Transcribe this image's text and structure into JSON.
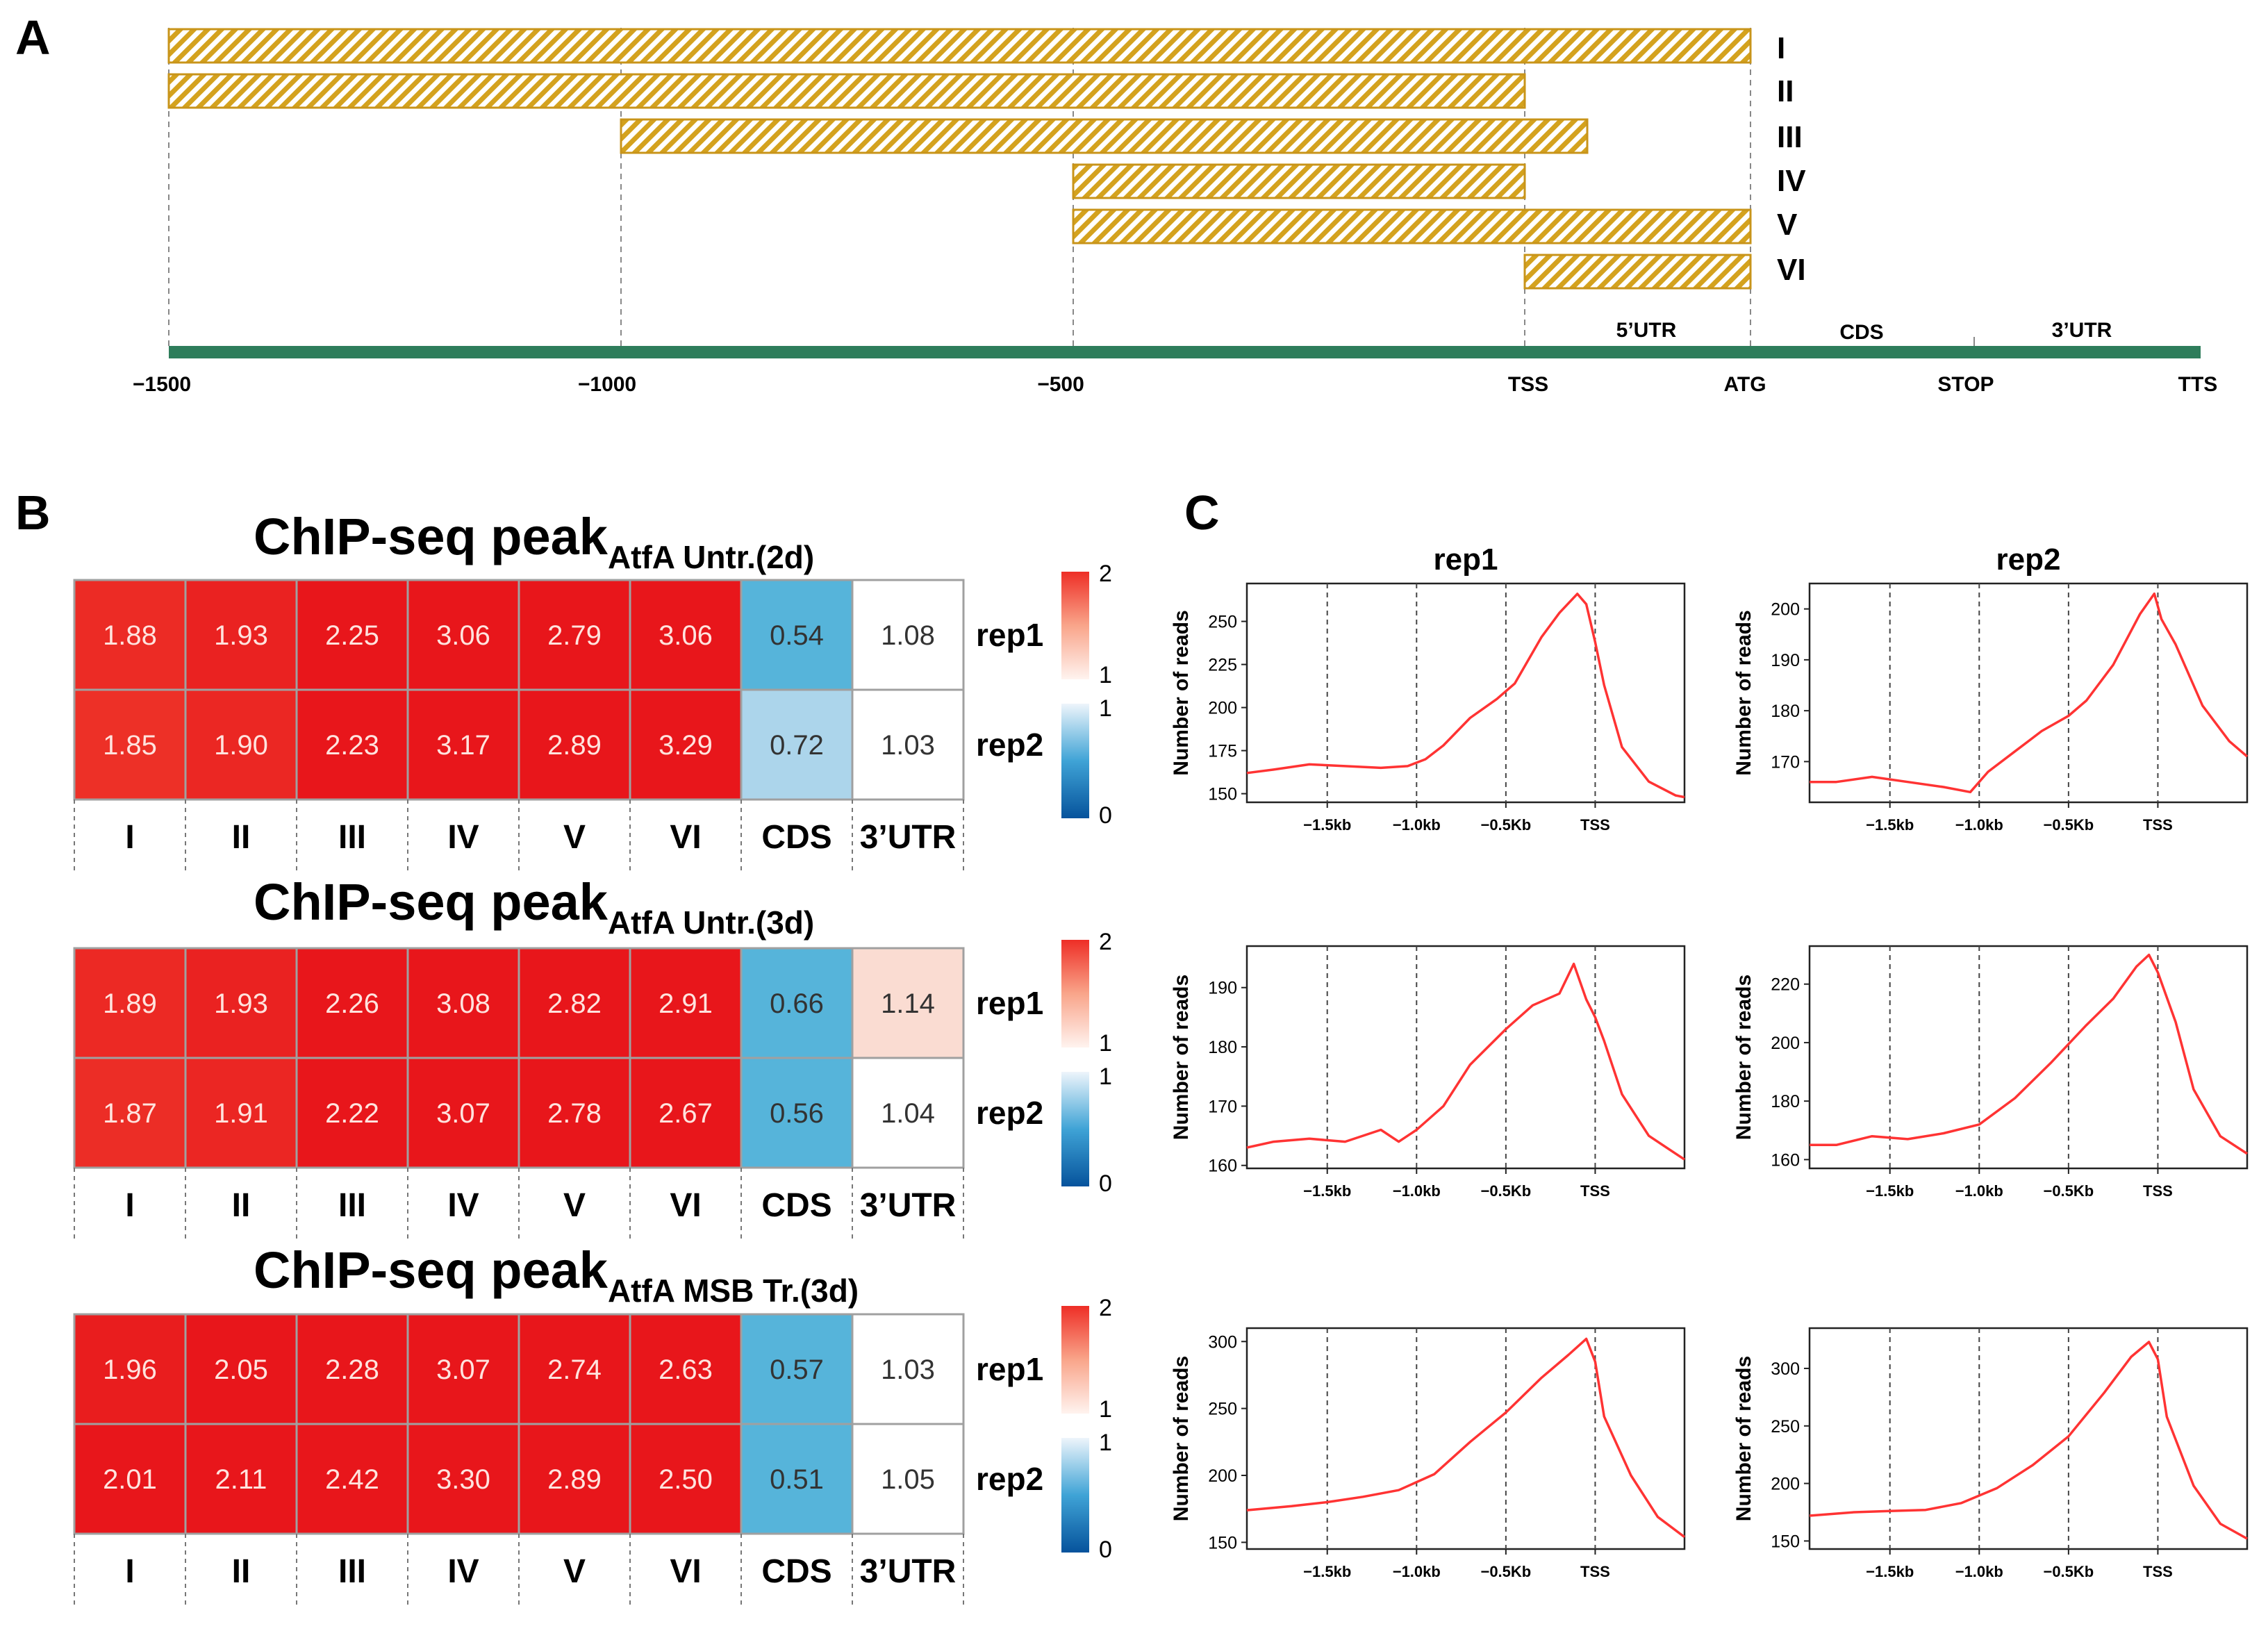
{
  "panel_labels": {
    "a": "A",
    "b": "B",
    "c": "C"
  },
  "colors": {
    "bar_stripe": "#D4A21E",
    "bar_border": "#C8941A",
    "axis_line": "#2E7D5B",
    "curve": "#FF3333",
    "cell_border": "#A0A0A0",
    "heat_high": "#E8161B",
    "heat_low_cds": "#56B4DA"
  },
  "panel_a": {
    "regions": [
      {
        "label": "I",
        "start": -1500,
        "end": "ATG"
      },
      {
        "label": "II",
        "start": -1500,
        "end": "TSS"
      },
      {
        "label": "III",
        "start": -1000,
        "end": "5'UTR mid"
      },
      {
        "label": "IV",
        "start": -500,
        "end": "TSS"
      },
      {
        "label": "V",
        "start": -500,
        "end": "ATG"
      },
      {
        "label": "VI",
        "start": "TSS",
        "end": "ATG"
      }
    ],
    "axis_ticks": [
      "−1500",
      "−1000",
      "−500",
      "TSS",
      "ATG",
      "STOP",
      "TTS"
    ],
    "segment_labels": [
      "5’UTR",
      "CDS",
      "3’UTR"
    ]
  },
  "chart_data": [
    {
      "type": "heatmap",
      "title_main": "ChIP-seq peak",
      "title_sub": "AtfA Untr.(2d)",
      "columns": [
        "I",
        "II",
        "III",
        "IV",
        "V",
        "VI",
        "CDS",
        "3’UTR"
      ],
      "rows": [
        "rep1",
        "rep2"
      ],
      "values": [
        [
          "1.88",
          "1.93",
          "2.25",
          "3.06",
          "2.79",
          "3.06",
          "0.54",
          "1.08"
        ],
        [
          "1.85",
          "1.90",
          "2.23",
          "3.17",
          "2.89",
          "3.29",
          "0.72",
          "1.03"
        ]
      ],
      "colorbar_ticks": [
        "2",
        "1",
        "1",
        "0"
      ]
    },
    {
      "type": "heatmap",
      "title_main": "ChIP-seq peak",
      "title_sub": "AtfA Untr.(3d)",
      "columns": [
        "I",
        "II",
        "III",
        "IV",
        "V",
        "VI",
        "CDS",
        "3’UTR"
      ],
      "rows": [
        "rep1",
        "rep2"
      ],
      "values": [
        [
          "1.89",
          "1.93",
          "2.26",
          "3.08",
          "2.82",
          "2.91",
          "0.66",
          "1.14"
        ],
        [
          "1.87",
          "1.91",
          "2.22",
          "3.07",
          "2.78",
          "2.67",
          "0.56",
          "1.04"
        ]
      ],
      "colorbar_ticks": [
        "2",
        "1",
        "1",
        "0"
      ]
    },
    {
      "type": "heatmap",
      "title_main": "ChIP-seq peak",
      "title_sub": "AtfA MSB Tr.(3d)",
      "columns": [
        "I",
        "II",
        "III",
        "IV",
        "V",
        "VI",
        "CDS",
        "3’UTR"
      ],
      "rows": [
        "rep1",
        "rep2"
      ],
      "values": [
        [
          "1.96",
          "2.05",
          "2.28",
          "3.07",
          "2.74",
          "2.63",
          "0.57",
          "1.03"
        ],
        [
          "2.01",
          "2.11",
          "2.42",
          "3.30",
          "2.89",
          "2.50",
          "0.51",
          "1.05"
        ]
      ],
      "colorbar_ticks": [
        "2",
        "1",
        "1",
        "0"
      ]
    },
    {
      "type": "line",
      "title": "rep1",
      "ylabel": "Number of reads",
      "xticks": [
        "−1.5kb",
        "−1.0kb",
        "−0.5Kb",
        "TSS"
      ],
      "xlim": [
        -1.95,
        0.5
      ],
      "xtick_values": [
        -1.5,
        -1.0,
        -0.5,
        0
      ],
      "ylim": [
        145,
        272
      ],
      "yticks": [
        150,
        175,
        200,
        225,
        250
      ],
      "x": [
        -1.95,
        -1.8,
        -1.6,
        -1.4,
        -1.2,
        -1.05,
        -0.95,
        -0.85,
        -0.7,
        -0.55,
        -0.45,
        -0.3,
        -0.2,
        -0.1,
        -0.05,
        0.0,
        0.05,
        0.15,
        0.3,
        0.45,
        0.5
      ],
      "y": [
        162,
        164,
        167,
        166,
        165,
        166,
        170,
        178,
        194,
        205,
        214,
        241,
        255,
        266,
        260,
        238,
        213,
        177,
        157,
        149,
        148
      ]
    },
    {
      "type": "line",
      "title": "rep2",
      "ylabel": "Number of reads",
      "xticks": [
        "−1.5kb",
        "−1.0kb",
        "−0.5Kb",
        "TSS"
      ],
      "xlim": [
        -1.95,
        0.5
      ],
      "xtick_values": [
        -1.5,
        -1.0,
        -0.5,
        0
      ],
      "ylim": [
        162,
        205
      ],
      "yticks": [
        170,
        180,
        190,
        200
      ],
      "x": [
        -1.95,
        -1.8,
        -1.6,
        -1.4,
        -1.2,
        -1.05,
        -0.95,
        -0.8,
        -0.65,
        -0.5,
        -0.4,
        -0.25,
        -0.1,
        -0.02,
        0.02,
        0.1,
        0.25,
        0.4,
        0.5
      ],
      "y": [
        166,
        166,
        167,
        166,
        165,
        164,
        168,
        172,
        176,
        179,
        182,
        189,
        199,
        203,
        198,
        193,
        181,
        174,
        171
      ]
    },
    {
      "type": "line",
      "title": "",
      "ylabel": "Number of reads",
      "xticks": [
        "−1.5kb",
        "−1.0kb",
        "−0.5Kb",
        "TSS"
      ],
      "xlim": [
        -1.95,
        0.5
      ],
      "xtick_values": [
        -1.5,
        -1.0,
        -0.5,
        0
      ],
      "ylim": [
        159.5,
        197
      ],
      "yticks": [
        160,
        170,
        180,
        190
      ],
      "x": [
        -1.95,
        -1.8,
        -1.6,
        -1.4,
        -1.2,
        -1.1,
        -1.0,
        -0.85,
        -0.7,
        -0.5,
        -0.35,
        -0.2,
        -0.12,
        -0.05,
        0.0,
        0.05,
        0.15,
        0.3,
        0.45,
        0.5
      ],
      "y": [
        163,
        164,
        164.5,
        164,
        166,
        164,
        166,
        170,
        177,
        183,
        187,
        189,
        194,
        188,
        185,
        181,
        172,
        165,
        162,
        161
      ]
    },
    {
      "type": "line",
      "title": "",
      "ylabel": "Number of reads",
      "xticks": [
        "−1.5kb",
        "−1.0kb",
        "−0.5Kb",
        "TSS"
      ],
      "xlim": [
        -1.95,
        0.5
      ],
      "xtick_values": [
        -1.5,
        -1.0,
        -0.5,
        0
      ],
      "ylim": [
        157,
        233
      ],
      "yticks": [
        160,
        180,
        200,
        220
      ],
      "x": [
        -1.95,
        -1.8,
        -1.6,
        -1.4,
        -1.2,
        -1.0,
        -0.8,
        -0.6,
        -0.4,
        -0.25,
        -0.12,
        -0.05,
        0.0,
        0.1,
        0.2,
        0.35,
        0.5
      ],
      "y": [
        165,
        165,
        168,
        167,
        169,
        172,
        181,
        193,
        206,
        215,
        226,
        230,
        224,
        207,
        184,
        168,
        162
      ]
    },
    {
      "type": "line",
      "title": "",
      "ylabel": "Number of reads",
      "xticks": [
        "−1.5kb",
        "−1.0kb",
        "−0.5Kb",
        "TSS"
      ],
      "xlim": [
        -1.95,
        0.5
      ],
      "xtick_values": [
        -1.5,
        -1.0,
        -0.5,
        0
      ],
      "ylim": [
        145,
        310
      ],
      "yticks": [
        150,
        200,
        250,
        300
      ],
      "x": [
        -1.95,
        -1.7,
        -1.5,
        -1.3,
        -1.1,
        -0.9,
        -0.7,
        -0.5,
        -0.3,
        -0.15,
        -0.05,
        0.0,
        0.05,
        0.2,
        0.35,
        0.5
      ],
      "y": [
        174,
        177,
        180,
        184,
        189,
        201,
        225,
        247,
        273,
        290,
        302,
        285,
        244,
        200,
        169,
        154
      ]
    },
    {
      "type": "line",
      "title": "",
      "ylabel": "Number of reads",
      "xticks": [
        "−1.5kb",
        "−1.0kb",
        "−0.5Kb",
        "TSS"
      ],
      "xlim": [
        -1.95,
        0.5
      ],
      "xtick_values": [
        -1.5,
        -1.0,
        -0.5,
        0
      ],
      "ylim": [
        143,
        335
      ],
      "yticks": [
        150,
        200,
        250,
        300
      ],
      "x": [
        -1.95,
        -1.7,
        -1.5,
        -1.3,
        -1.1,
        -0.9,
        -0.7,
        -0.5,
        -0.3,
        -0.15,
        -0.05,
        0.0,
        0.05,
        0.2,
        0.35,
        0.5
      ],
      "y": [
        172,
        175,
        176,
        177,
        183,
        196,
        216,
        241,
        279,
        310,
        323,
        308,
        258,
        198,
        165,
        152
      ]
    }
  ]
}
